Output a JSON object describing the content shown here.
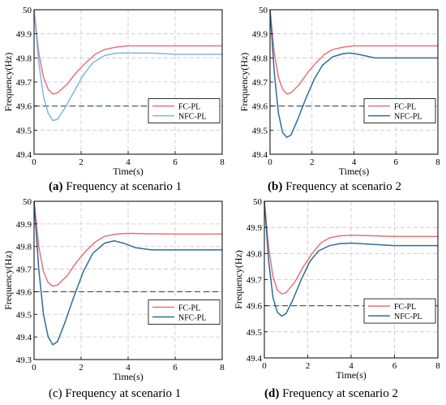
{
  "chart_data": [
    {
      "type": "line",
      "caption_label": "(a)",
      "caption_text": "Frequency at scenario 1",
      "xlabel": "Time(s)",
      "ylabel": "Frequency(Hz)",
      "xlim": [
        0,
        8
      ],
      "ylim": [
        49.4,
        50
      ],
      "xticks": [
        0,
        2,
        4,
        6,
        8
      ],
      "yticks": [
        49.4,
        49.5,
        49.6,
        49.7,
        49.8,
        49.9,
        50
      ],
      "grid": true,
      "legend_position": "lower-right",
      "reference_line": 49.6,
      "series": [
        {
          "name": "FC-PL",
          "color": "#e8727a",
          "x": [
            0,
            0.2,
            0.4,
            0.6,
            0.8,
            1.0,
            1.4,
            1.8,
            2.2,
            2.6,
            3.0,
            3.5,
            4.0,
            5.0,
            6.0,
            8.0
          ],
          "y": [
            50.0,
            49.82,
            49.72,
            49.67,
            49.65,
            49.655,
            49.69,
            49.74,
            49.78,
            49.815,
            49.835,
            49.845,
            49.85,
            49.85,
            49.85,
            49.85
          ]
        },
        {
          "name": "NFC-PL",
          "color": "#7fb6dc",
          "x": [
            0,
            0.2,
            0.4,
            0.6,
            0.8,
            1.0,
            1.3,
            1.7,
            2.1,
            2.5,
            3.0,
            3.5,
            4.0,
            5.0,
            6.0,
            8.0
          ],
          "y": [
            50.0,
            49.78,
            49.64,
            49.57,
            49.54,
            49.545,
            49.59,
            49.66,
            49.73,
            49.78,
            49.81,
            49.82,
            49.82,
            49.82,
            49.815,
            49.815
          ]
        }
      ]
    },
    {
      "type": "line",
      "caption_label": "(b)",
      "caption_text": "Frequency at scenario 2",
      "xlabel": "Time(s)",
      "ylabel": "Frequency(Hz)",
      "xlim": [
        0,
        8
      ],
      "ylim": [
        49.4,
        50
      ],
      "xticks": [
        0,
        2,
        4,
        6,
        8
      ],
      "yticks": [
        49.4,
        49.5,
        49.6,
        49.7,
        49.8,
        49.9,
        50
      ],
      "grid": true,
      "legend_position": "lower-right",
      "reference_line": 49.6,
      "series": [
        {
          "name": "FC-PL",
          "color": "#e8727a",
          "x": [
            0,
            0.2,
            0.4,
            0.6,
            0.8,
            1.0,
            1.4,
            1.8,
            2.2,
            2.6,
            3.0,
            3.5,
            4.0,
            5.0,
            6.0,
            8.0
          ],
          "y": [
            50.0,
            49.82,
            49.72,
            49.67,
            49.65,
            49.655,
            49.69,
            49.74,
            49.78,
            49.815,
            49.835,
            49.845,
            49.85,
            49.85,
            49.85,
            49.85
          ]
        },
        {
          "name": "NFC-PL",
          "color": "#2e6e96",
          "x": [
            0,
            0.2,
            0.4,
            0.6,
            0.8,
            1.0,
            1.3,
            1.7,
            2.1,
            2.5,
            3.0,
            3.5,
            3.8,
            4.2,
            5.0,
            6.0,
            8.0
          ],
          "y": [
            50.0,
            49.74,
            49.57,
            49.49,
            49.47,
            49.48,
            49.54,
            49.63,
            49.71,
            49.77,
            49.805,
            49.818,
            49.82,
            49.815,
            49.8,
            49.8,
            49.8
          ]
        }
      ]
    },
    {
      "type": "line",
      "caption_label": "(c)",
      "caption_text": "Frequency at scenario 1",
      "xlabel": "Time(s)",
      "ylabel": "Frequency(Hz)",
      "xlim": [
        0,
        8
      ],
      "ylim": [
        49.3,
        50
      ],
      "xticks": [
        0,
        2,
        4,
        6,
        8
      ],
      "yticks": [
        49.3,
        49.4,
        49.5,
        49.6,
        49.7,
        49.8,
        49.9,
        50
      ],
      "grid": true,
      "legend_position": "lower-right",
      "reference_line": 49.6,
      "series": [
        {
          "name": "FC-PL",
          "color": "#e8727a",
          "x": [
            0,
            0.2,
            0.4,
            0.6,
            0.8,
            1.0,
            1.4,
            1.8,
            2.2,
            2.6,
            3.0,
            3.5,
            4.0,
            5.0,
            6.0,
            8.0
          ],
          "y": [
            50.0,
            49.8,
            49.69,
            49.64,
            49.625,
            49.63,
            49.67,
            49.73,
            49.78,
            49.82,
            49.845,
            49.855,
            49.858,
            49.856,
            49.855,
            49.855
          ]
        },
        {
          "name": "NFC-PL",
          "color": "#2e6e96",
          "x": [
            0,
            0.2,
            0.4,
            0.6,
            0.8,
            1.0,
            1.3,
            1.7,
            2.1,
            2.5,
            3.0,
            3.4,
            3.8,
            4.3,
            5.0,
            6.0,
            8.0
          ],
          "y": [
            50.0,
            49.7,
            49.5,
            49.4,
            49.365,
            49.38,
            49.46,
            49.58,
            49.69,
            49.77,
            49.815,
            49.825,
            49.815,
            49.795,
            49.785,
            49.785,
            49.785
          ]
        }
      ]
    },
    {
      "type": "line",
      "caption_label": "(d)",
      "caption_text": "Frequency at scenario 2",
      "xlabel": "Time(s)",
      "ylabel": "Frequency(Hz)",
      "xlim": [
        0,
        8
      ],
      "ylim": [
        49.4,
        50
      ],
      "xticks": [
        0,
        2,
        4,
        6,
        8
      ],
      "yticks": [
        49.4,
        49.5,
        49.6,
        49.7,
        49.8,
        49.9,
        50
      ],
      "grid": true,
      "legend_position": "lower-right",
      "reference_line": 49.6,
      "series": [
        {
          "name": "FC-PL",
          "color": "#e8727a",
          "x": [
            0,
            0.2,
            0.4,
            0.6,
            0.8,
            1.0,
            1.4,
            1.8,
            2.2,
            2.6,
            3.0,
            3.5,
            4.0,
            5.0,
            6.0,
            8.0
          ],
          "y": [
            50.0,
            49.82,
            49.71,
            49.66,
            49.645,
            49.65,
            49.69,
            49.75,
            49.8,
            49.84,
            49.86,
            49.868,
            49.87,
            49.868,
            49.865,
            49.865
          ]
        },
        {
          "name": "NFC-PL",
          "color": "#2e6e96",
          "x": [
            0,
            0.2,
            0.4,
            0.6,
            0.8,
            1.0,
            1.3,
            1.7,
            2.1,
            2.5,
            3.0,
            3.5,
            4.0,
            5.0,
            6.0,
            8.0
          ],
          "y": [
            50.0,
            49.77,
            49.63,
            49.575,
            49.56,
            49.57,
            49.62,
            49.7,
            49.77,
            49.81,
            49.83,
            49.838,
            49.84,
            49.835,
            49.83,
            49.83
          ]
        }
      ]
    }
  ]
}
